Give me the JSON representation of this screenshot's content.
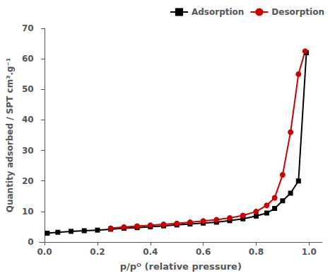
{
  "chart_data": {
    "type": "line",
    "xlabel": "p/pᴼ (relative pressure)",
    "ylabel": "Quantity adsorbed / SPT cm³.g⁻¹",
    "xlim": [
      -0.02,
      1.05
    ],
    "ylim": [
      0,
      70
    ],
    "xticks": [
      {
        "value": 0.0,
        "label": "0.0"
      },
      0.2,
      0.4,
      0.6,
      0.8,
      {
        "value": 1.0,
        "label": "1.0"
      }
    ],
    "yticks": [
      0,
      10,
      20,
      30,
      40,
      50,
      60,
      70
    ],
    "grid": false,
    "legend": "upper right",
    "series": [
      {
        "name": "Adsorption",
        "color": "#000000",
        "marker": "square",
        "x": [
          0.01,
          0.05,
          0.1,
          0.15,
          0.2,
          0.25,
          0.3,
          0.35,
          0.4,
          0.45,
          0.5,
          0.55,
          0.6,
          0.65,
          0.7,
          0.75,
          0.8,
          0.84,
          0.87,
          0.9,
          0.93,
          0.96,
          0.99
        ],
        "values": [
          2.9,
          3.2,
          3.5,
          3.7,
          3.9,
          4.2,
          4.5,
          4.7,
          5.0,
          5.3,
          5.6,
          5.9,
          6.2,
          6.5,
          7.0,
          7.6,
          8.5,
          9.5,
          11.0,
          13.5,
          16.0,
          20.0,
          62.0
        ]
      },
      {
        "name": "Desorption",
        "color": "#cc0000",
        "marker": "circle",
        "x": [
          0.25,
          0.3,
          0.35,
          0.4,
          0.45,
          0.5,
          0.55,
          0.6,
          0.65,
          0.7,
          0.75,
          0.8,
          0.84,
          0.87,
          0.9,
          0.93,
          0.96,
          0.985
        ],
        "values": [
          4.5,
          4.9,
          5.2,
          5.5,
          5.8,
          6.1,
          6.5,
          6.9,
          7.3,
          7.9,
          8.7,
          10.0,
          12.0,
          14.5,
          22.0,
          36.0,
          55.0,
          62.5
        ]
      }
    ]
  }
}
